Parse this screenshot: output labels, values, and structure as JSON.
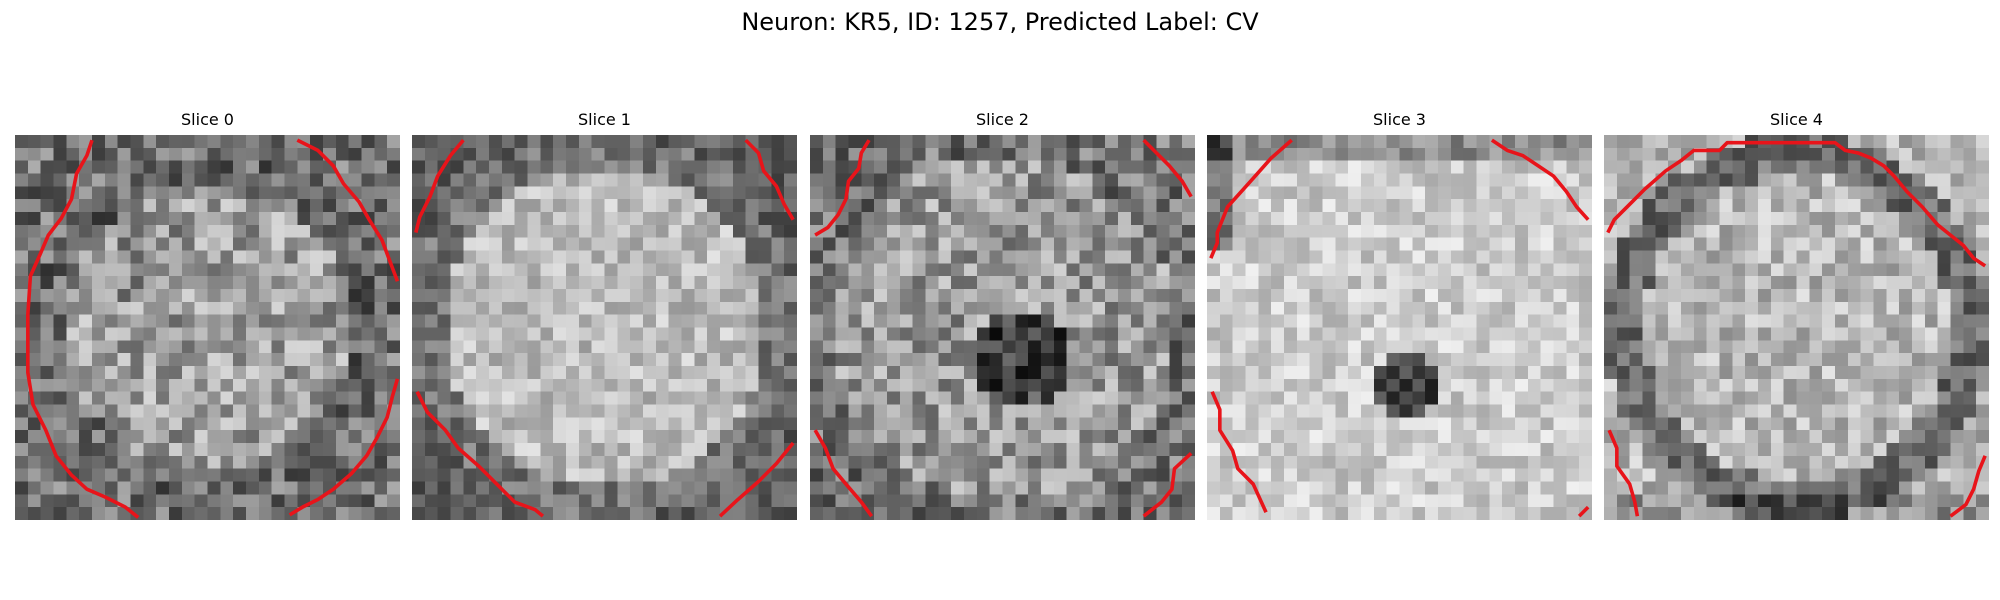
{
  "figure": {
    "title": "Neuron: KR5, ID: 1257, Predicted Label: CV",
    "panels": [
      {
        "title": "Slice 0",
        "pattern": "dark-ring",
        "seed": 11
      },
      {
        "title": "Slice 1",
        "pattern": "bright-disc",
        "seed": 23
      },
      {
        "title": "Slice 2",
        "pattern": "dark-center",
        "seed": 37
      },
      {
        "title": "Slice 3",
        "pattern": "bright-dark-spot",
        "seed": 41
      },
      {
        "title": "Slice 4",
        "pattern": "bright-ring-edge",
        "seed": 53
      }
    ],
    "contour_color": "#e8141a",
    "colormap": "gray"
  }
}
